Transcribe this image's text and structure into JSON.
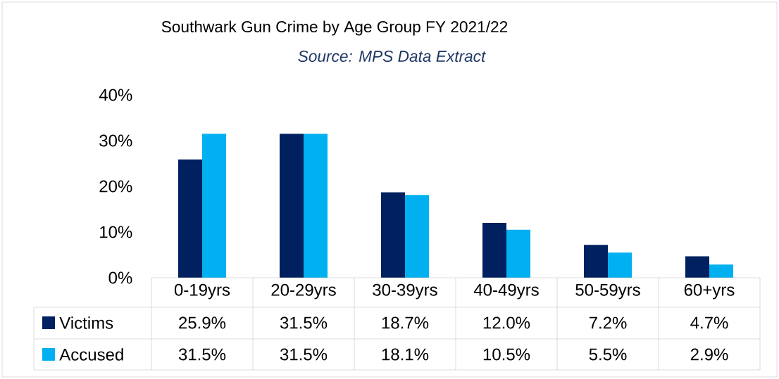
{
  "chart_data": {
    "type": "bar",
    "title": "Southwark Gun Crime by Age Group FY 2021/22",
    "subtitle": "Source: MPS Data Extract",
    "categories": [
      "0-19yrs",
      "20-29yrs",
      "30-39yrs",
      "40-49yrs",
      "50-59yrs",
      "60+yrs"
    ],
    "series": [
      {
        "name": "Victims",
        "color": "#002060",
        "values": [
          25.9,
          31.5,
          18.7,
          12.0,
          7.2,
          4.7
        ],
        "value_labels": [
          "25.9%",
          "31.5%",
          "18.7%",
          "12.0%",
          "7.2%",
          "4.7%"
        ]
      },
      {
        "name": "Accused",
        "color": "#00b0f0",
        "values": [
          31.5,
          31.5,
          18.1,
          10.5,
          5.5,
          2.9
        ],
        "value_labels": [
          "31.5%",
          "31.5%",
          "18.1%",
          "10.5%",
          "5.5%",
          "2.9%"
        ]
      }
    ],
    "ylim": [
      0,
      40
    ],
    "yticks": [
      {
        "value": 0,
        "label": "0%"
      },
      {
        "value": 10,
        "label": "10%"
      },
      {
        "value": 20,
        "label": "20%"
      },
      {
        "value": 30,
        "label": "30%"
      },
      {
        "value": 40,
        "label": "40%"
      }
    ],
    "grid": false,
    "legend": "bottom"
  }
}
